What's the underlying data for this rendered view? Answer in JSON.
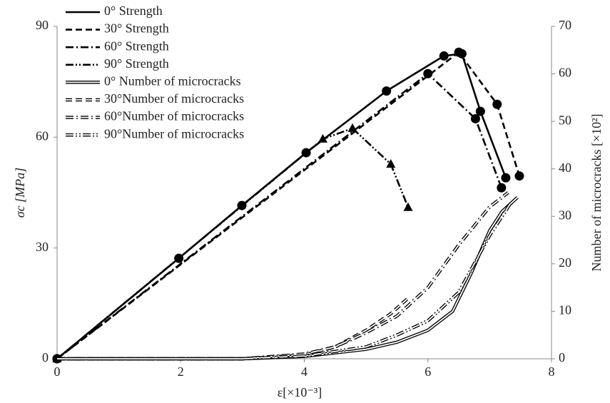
{
  "chart_data": {
    "type": "line",
    "xlabel": "ε[×10⁻³]",
    "ylabel": "σc [MPa]",
    "y2label": "Number of microcracks  [×10²]",
    "xlim": [
      0,
      8
    ],
    "xticks": [
      0,
      2,
      4,
      6,
      8
    ],
    "ylim": [
      0,
      90
    ],
    "yticks": [
      0,
      30,
      60,
      90
    ],
    "y2lim": [
      0,
      70
    ],
    "y2ticks": [
      0,
      10,
      20,
      30,
      40,
      50,
      60,
      70
    ],
    "legend": "upper left",
    "grid": false,
    "series": [
      {
        "name": "0°   Strength",
        "color": "#000000",
        "style": "solid",
        "marker": "circle",
        "x": [
          0,
          1.97,
          2.99,
          4.03,
          5.33,
          6.26,
          6.55,
          6.85,
          7.26
        ],
        "values": [
          0,
          27.2,
          41.5,
          55.8,
          72.5,
          82,
          82.6,
          67,
          49
        ]
      },
      {
        "name": "30° Strength",
        "color": "#000000",
        "style": "dashed",
        "marker": "circle",
        "x": [
          0,
          6.5,
          7.12,
          7.48
        ],
        "values": [
          0,
          83,
          68.9,
          49.5
        ]
      },
      {
        "name": "60° Strength",
        "color": "#000000",
        "style": "dashdot",
        "marker": "circle",
        "x": [
          0,
          6.0,
          6.77,
          7.19
        ],
        "values": [
          0,
          77.2,
          65,
          46.3
        ]
      },
      {
        "name": "90° Strength",
        "color": "#000000",
        "style": "dashdotdot",
        "marker": "triangle",
        "x": [
          0,
          4.3,
          4.78,
          5.4,
          5.68
        ],
        "values": [
          0,
          59.5,
          62.4,
          52.7,
          41
        ]
      },
      {
        "name": "0°  Number of microcracks",
        "color": "#000000",
        "style": "solid",
        "double": true,
        "axis": "y2",
        "x": [
          0,
          3,
          4,
          5,
          5.5,
          6,
          6.4,
          6.7,
          7,
          7.2,
          7.45
        ],
        "values": [
          0,
          0,
          0.5,
          2,
          3.5,
          6,
          10,
          18,
          27,
          31,
          34
        ]
      },
      {
        "name": "30°Number of microcracks",
        "color": "#000000",
        "style": "dashed",
        "double": true,
        "axis": "y2",
        "x": [
          0,
          3,
          4,
          4.5,
          5,
          5.4,
          5.7
        ],
        "values": [
          0,
          0,
          0.8,
          2.5,
          6,
          9.5,
          13
        ]
      },
      {
        "name": "60°Number of microcracks",
        "color": "#000000",
        "style": "dashdot",
        "double": true,
        "axis": "y2",
        "x": [
          0,
          3,
          4,
          4.5,
          5,
          5.5,
          6,
          6.5,
          7,
          7.3
        ],
        "values": [
          0,
          0,
          1,
          2.5,
          5.5,
          9,
          15,
          24,
          32,
          35
        ]
      },
      {
        "name": "90°Number of microcracks",
        "color": "#000000",
        "style": "dashdotdot",
        "double": true,
        "axis": "y2",
        "x": [
          0,
          3,
          4,
          5,
          5.5,
          6,
          6.5,
          7,
          7.35
        ],
        "values": [
          0,
          0,
          0.6,
          2.5,
          5,
          8,
          14,
          26,
          33
        ]
      }
    ]
  }
}
